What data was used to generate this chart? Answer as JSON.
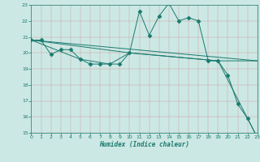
{
  "title": "",
  "xlabel": "Humidex (Indice chaleur)",
  "bg_color": "#cce8e4",
  "line_color": "#1a7a6e",
  "xlim": [
    0,
    23
  ],
  "ylim": [
    15,
    23
  ],
  "xticks": [
    0,
    1,
    2,
    3,
    4,
    5,
    6,
    7,
    8,
    9,
    10,
    11,
    12,
    13,
    14,
    15,
    16,
    17,
    18,
    19,
    20,
    21,
    22,
    23
  ],
  "yticks": [
    15,
    16,
    17,
    18,
    19,
    20,
    21,
    22,
    23
  ],
  "lines": [
    {
      "x": [
        0,
        1,
        2,
        3,
        4,
        5,
        6,
        7,
        8,
        9,
        10,
        11,
        12,
        13,
        14,
        15,
        16,
        17,
        18,
        19,
        20,
        21,
        22,
        23
      ],
      "y": [
        20.8,
        20.8,
        19.9,
        20.2,
        20.2,
        19.6,
        19.3,
        19.3,
        19.3,
        19.3,
        20.0,
        22.6,
        21.1,
        22.3,
        23.1,
        22.0,
        22.2,
        22.0,
        19.5,
        19.5,
        18.6,
        16.8,
        15.9,
        14.7
      ],
      "marker": "D",
      "markersize": 2.5,
      "lw": 0.7
    },
    {
      "x": [
        0,
        23
      ],
      "y": [
        20.8,
        19.5
      ],
      "marker": null,
      "markersize": 0,
      "lw": 0.7
    },
    {
      "x": [
        0,
        10,
        19,
        23
      ],
      "y": [
        20.8,
        20.0,
        19.5,
        19.5
      ],
      "marker": null,
      "markersize": 0,
      "lw": 0.7
    },
    {
      "x": [
        0,
        5,
        8,
        10,
        19,
        23
      ],
      "y": [
        20.8,
        19.6,
        19.3,
        20.0,
        19.5,
        14.7
      ],
      "marker": null,
      "markersize": 0,
      "lw": 0.7
    }
  ]
}
